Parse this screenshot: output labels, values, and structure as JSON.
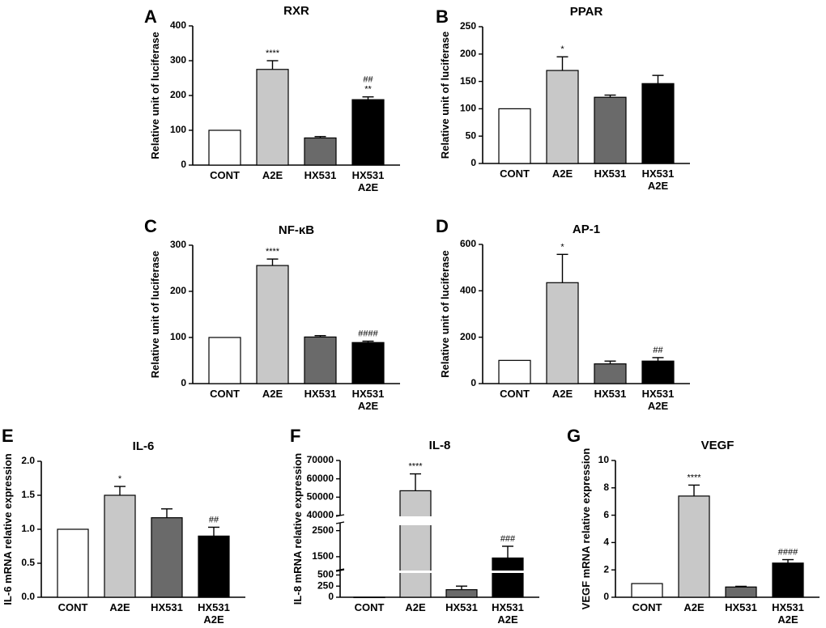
{
  "figure": {
    "colors": {
      "CONT": "#ffffff",
      "A2E": "#c8c8c8",
      "HX531": "#6a6a6a",
      "HX531 A2E": "#000000",
      "axis": "#000000"
    }
  },
  "chart_data": [
    {
      "id": "A",
      "panel": "A",
      "type": "bar",
      "title": "RXR",
      "ylabel": "Relative unit of luciferase",
      "xlabel": "",
      "categories": [
        "CONT",
        "A2E",
        "HX531",
        "HX531\nA2E"
      ],
      "values": [
        100,
        275,
        78,
        188
      ],
      "errors": [
        0,
        25,
        4,
        8
      ],
      "annotations": [
        [],
        [
          "****"
        ],
        [],
        [
          "##",
          "**"
        ]
      ],
      "ylim": [
        0,
        400
      ],
      "yticks": [
        0,
        100,
        200,
        300,
        400
      ],
      "ytick_labels": [
        "0",
        "100",
        "200",
        "300",
        "400"
      ]
    },
    {
      "id": "B",
      "panel": "B",
      "type": "bar",
      "title": "PPAR",
      "ylabel": "Relative unit of luciferase",
      "xlabel": "",
      "categories": [
        "CONT",
        "A2E",
        "HX531",
        "HX531\nA2E"
      ],
      "values": [
        100,
        170,
        121,
        146
      ],
      "errors": [
        0,
        25,
        4,
        15
      ],
      "annotations": [
        [],
        [
          "*"
        ],
        [],
        []
      ],
      "ylim": [
        0,
        250
      ],
      "yticks": [
        0,
        50,
        100,
        150,
        200,
        250
      ],
      "ytick_labels": [
        "0",
        "50",
        "100",
        "150",
        "200",
        "250"
      ]
    },
    {
      "id": "C",
      "panel": "C",
      "type": "bar",
      "title": "NF-κB",
      "ylabel": "Relative unit of luciferase",
      "xlabel": "",
      "categories": [
        "CONT",
        "A2E",
        "HX531",
        "HX531\nA2E"
      ],
      "values": [
        100,
        256,
        101,
        89
      ],
      "errors": [
        0,
        14,
        3,
        3
      ],
      "annotations": [
        [],
        [
          "****"
        ],
        [],
        [
          "####"
        ]
      ],
      "ylim": [
        0,
        300
      ],
      "yticks": [
        0,
        100,
        200,
        300
      ],
      "ytick_labels": [
        "0",
        "100",
        "200",
        "300"
      ]
    },
    {
      "id": "D",
      "panel": "D",
      "type": "bar",
      "title": "AP-1",
      "ylabel": "Relative unit of luciferase",
      "xlabel": "",
      "categories": [
        "CONT",
        "A2E",
        "HX531",
        "HX531\nA2E"
      ],
      "values": [
        100,
        435,
        85,
        97
      ],
      "errors": [
        0,
        122,
        12,
        15
      ],
      "annotations": [
        [],
        [
          "*"
        ],
        [],
        [
          "##"
        ]
      ],
      "ylim": [
        0,
        600
      ],
      "yticks": [
        0,
        200,
        400,
        600
      ],
      "ytick_labels": [
        "0",
        "200",
        "400",
        "600"
      ]
    },
    {
      "id": "E",
      "panel": "E",
      "type": "bar",
      "title": "IL-6",
      "ylabel": "IL-6 mRNA relative expression",
      "xlabel": "",
      "categories": [
        "CONT",
        "A2E",
        "HX531",
        "HX531\nA2E"
      ],
      "values": [
        1.0,
        1.5,
        1.17,
        0.9
      ],
      "errors": [
        0,
        0.13,
        0.13,
        0.13
      ],
      "annotations": [
        [],
        [
          "*"
        ],
        [],
        [
          "##"
        ]
      ],
      "ylim": [
        0,
        2.0
      ],
      "yticks": [
        0,
        0.5,
        1.0,
        1.5,
        2.0
      ],
      "ytick_labels": [
        "0.0",
        "0.5",
        "1.0",
        "1.5",
        "2.0"
      ]
    },
    {
      "id": "F",
      "panel": "F",
      "type": "bar",
      "title": "IL-8",
      "ylabel": "IL-8 mRNA relative expression",
      "xlabel": "",
      "categories": [
        "CONT",
        "A2E",
        "HX531",
        "HX531\nA2E"
      ],
      "values": [
        1,
        53500,
        170,
        1450
      ],
      "errors": [
        0,
        9200,
        80,
        450
      ],
      "annotations": [
        [],
        [
          "****"
        ],
        [],
        [
          "###"
        ]
      ],
      "y_axis_breaks": [
        [
          600,
          1000
        ],
        [
          2800,
          40000
        ]
      ],
      "yticks": [
        0,
        250,
        500,
        1500,
        2500,
        40000,
        50000,
        60000,
        70000
      ],
      "ytick_labels": [
        "0",
        "250",
        "500",
        "1500",
        "2500",
        "40000",
        "50000",
        "60000",
        "70000"
      ]
    },
    {
      "id": "G",
      "panel": "G",
      "type": "bar",
      "title": "VEGF",
      "ylabel": "VEGF mRNA relative expression",
      "xlabel": "",
      "categories": [
        "CONT",
        "A2E",
        "HX531",
        "HX531\nA2E"
      ],
      "values": [
        1.0,
        7.4,
        0.75,
        2.5
      ],
      "errors": [
        0,
        0.8,
        0.05,
        0.25
      ],
      "annotations": [
        [],
        [
          "****"
        ],
        [],
        [
          "####"
        ]
      ],
      "ylim": [
        0,
        10
      ],
      "yticks": [
        0,
        2,
        4,
        6,
        8,
        10
      ],
      "ytick_labels": [
        "0",
        "2",
        "4",
        "6",
        "8",
        "10"
      ]
    }
  ]
}
